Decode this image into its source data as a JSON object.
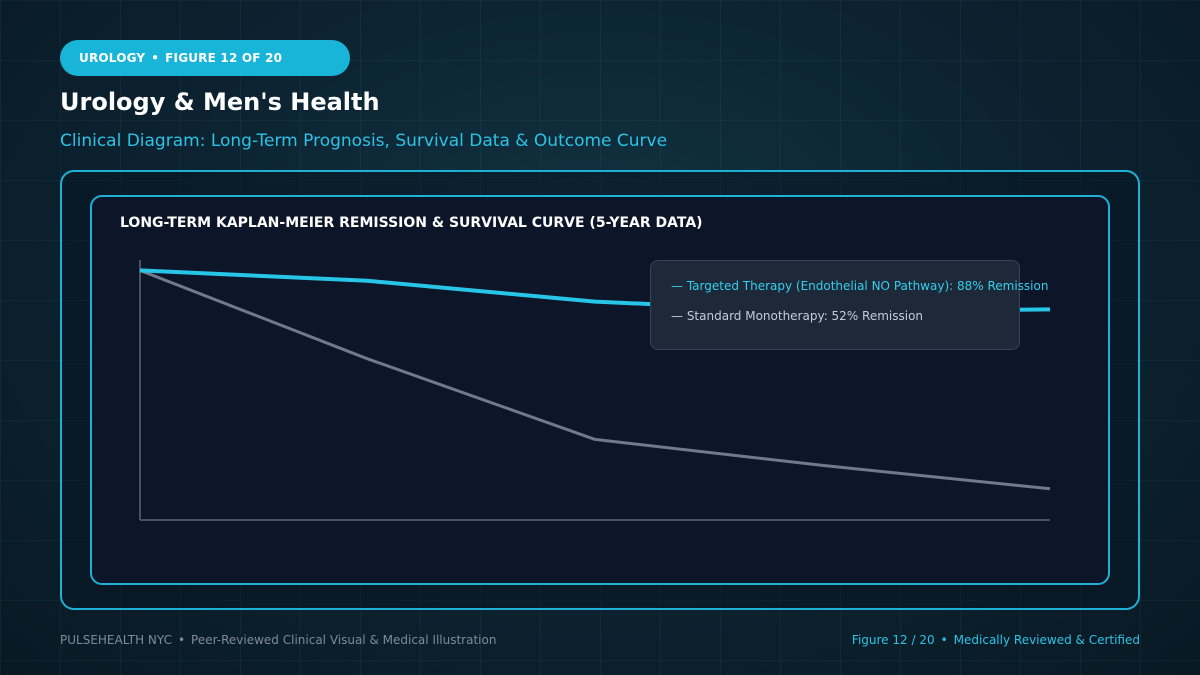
{
  "header": {
    "badge_category": "UROLOGY",
    "badge_separator": "•",
    "badge_figure": "FIGURE 12 OF 20",
    "title": "Urology & Men's Health",
    "subtitle": "Clinical Diagram: Long-Term Prognosis, Survival Data & Outcome Curve"
  },
  "chart_data": {
    "type": "line",
    "title": "LONG-TERM KAPLAN-MEIER REMISSION & SURVIVAL CURVE (5-YEAR DATA)",
    "xlabel": "",
    "ylabel": "",
    "grid": false,
    "legend_placement": "top-right",
    "ylim": [
      0,
      100
    ],
    "x": [
      0,
      1,
      2,
      3,
      4
    ],
    "series": [
      {
        "name": "— Targeted Therapy (Endothelial NO Pathway): 88% Remission",
        "color": "#27c6e8",
        "values": [
          96,
          92,
          84,
          80,
          81
        ]
      },
      {
        "name": "— Standard Monotherapy: 52% Remission",
        "color": "#6f7a8c",
        "values": [
          96,
          62,
          31,
          21,
          12
        ]
      }
    ]
  },
  "footer": {
    "left_brand": "PULSEHEALTH NYC",
    "left_separator": "•",
    "left_text": "Peer-Reviewed Clinical Visual & Medical Illustration",
    "right_figure": "Figure 12 / 20",
    "right_separator": "•",
    "right_text": "Medically Reviewed & Certified"
  },
  "colors": {
    "accent": "#19b5d8",
    "panel_border": "#1fb0d4",
    "chart_background": "#0c1628",
    "axis": "#5b6577"
  }
}
